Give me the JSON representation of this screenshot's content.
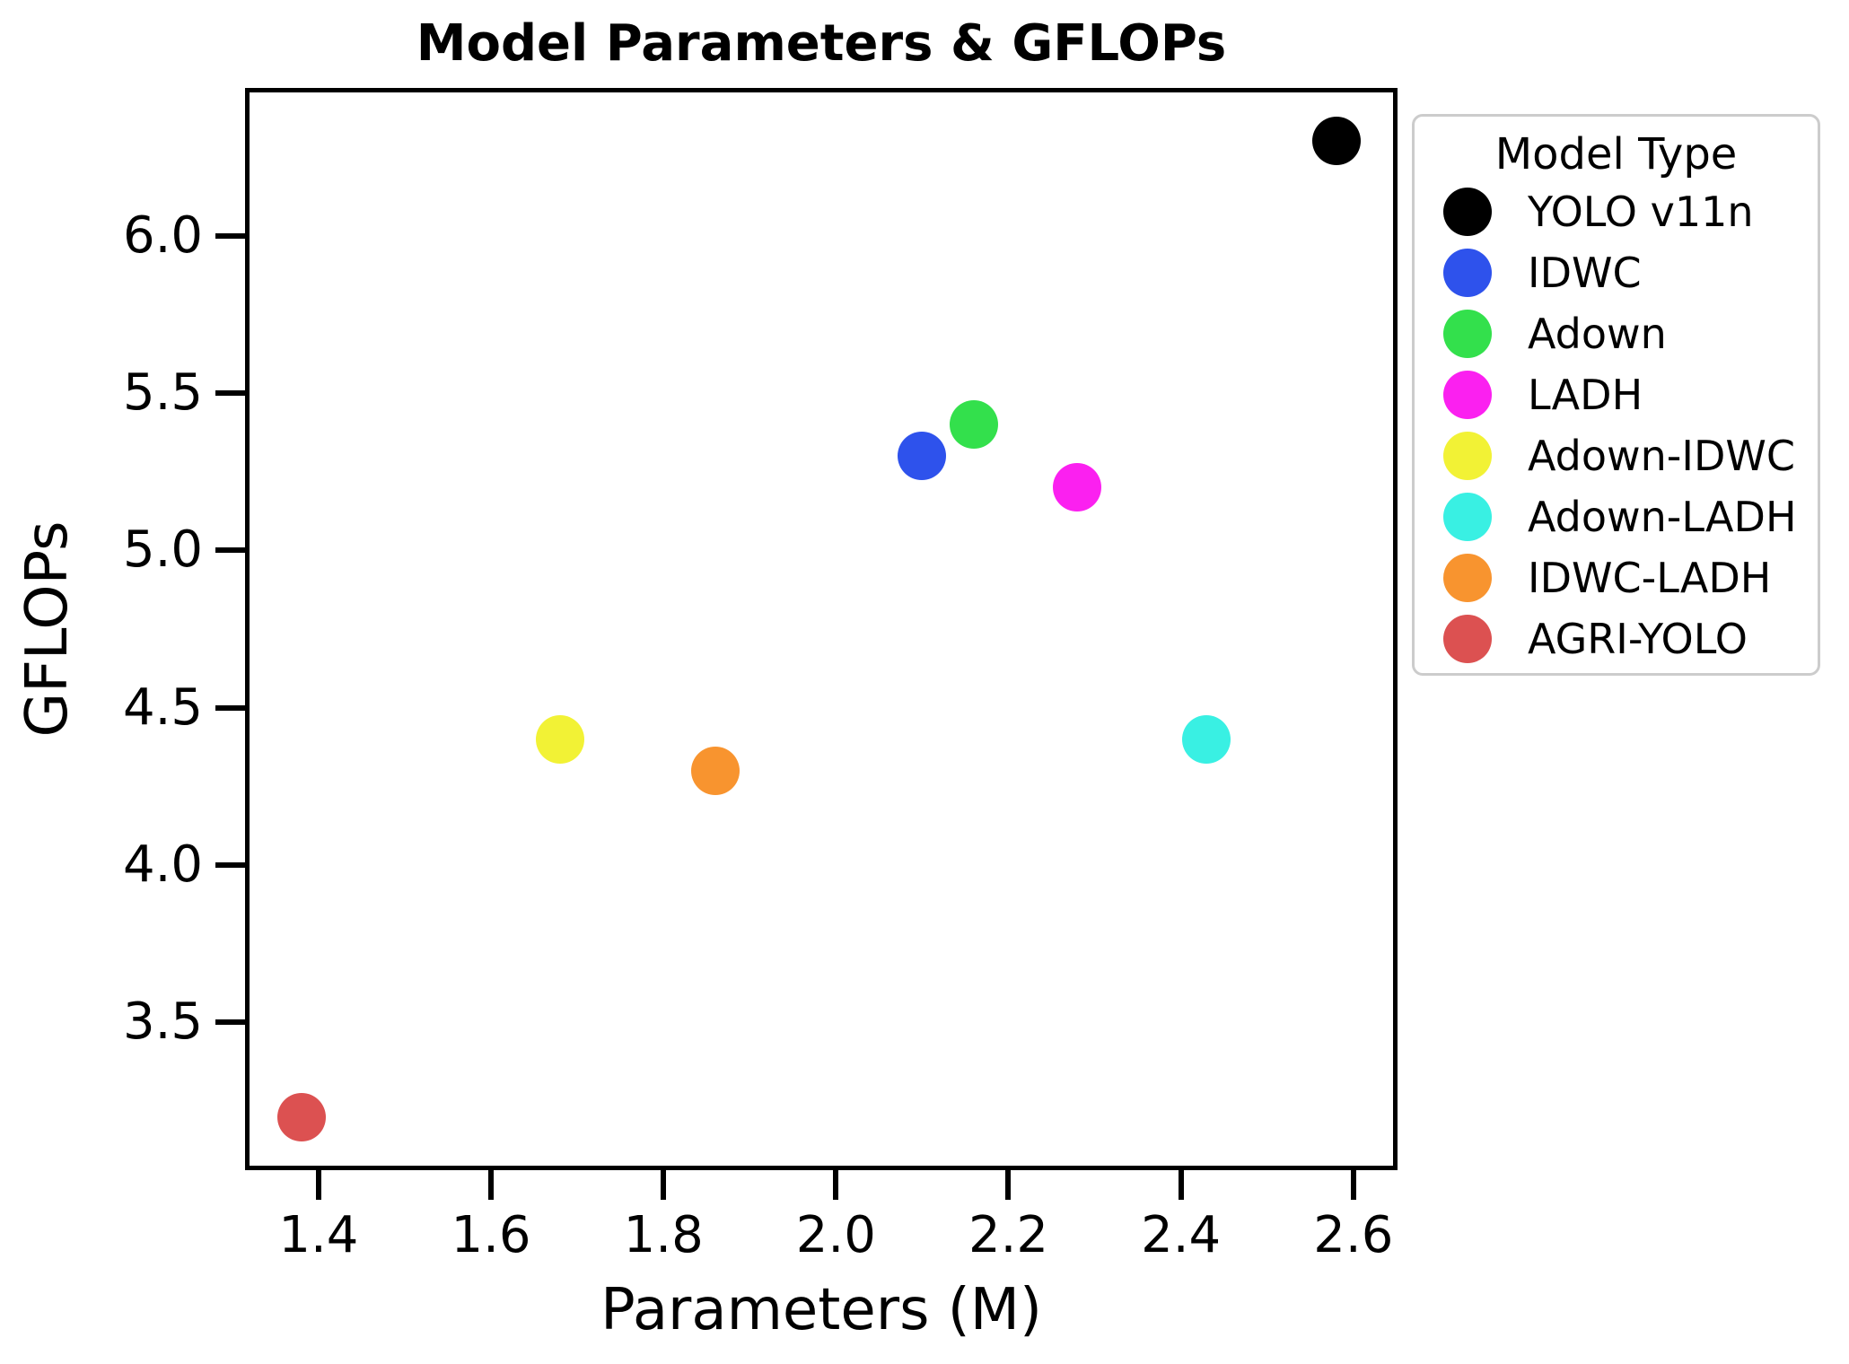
{
  "chart_data": {
    "type": "scatter",
    "title": "Model Parameters & GFLOPs",
    "xlabel": "Parameters (M)",
    "ylabel": "GFLOPs",
    "legend_title": "Model Type",
    "legend_position": "upper right, outside plot",
    "grid": false,
    "xlim": [
      1.32,
      2.646
    ],
    "ylim": [
      3.045,
      6.455
    ],
    "x_ticks": [
      1.4,
      1.6,
      1.8,
      2.0,
      2.2,
      2.4,
      2.6
    ],
    "y_ticks": [
      3.5,
      4.0,
      4.5,
      5.0,
      5.5,
      6.0
    ],
    "tick_decimals": 1,
    "series": [
      {
        "name": "YOLO v11n",
        "color": "#000000",
        "x": 2.58,
        "y": 6.3
      },
      {
        "name": "IDWC",
        "color": "#2e52ec",
        "x": 2.1,
        "y": 5.3
      },
      {
        "name": "Adown",
        "color": "#33e04c",
        "x": 2.16,
        "y": 5.4
      },
      {
        "name": "LADH",
        "color": "#fb20f0",
        "x": 2.28,
        "y": 5.2
      },
      {
        "name": "Adown-IDWC",
        "color": "#f2f235",
        "x": 1.68,
        "y": 4.4
      },
      {
        "name": "Adown-LADH",
        "color": "#39f0e3",
        "x": 2.43,
        "y": 4.4
      },
      {
        "name": "IDWC-LADH",
        "color": "#f8942f",
        "x": 1.86,
        "y": 4.3
      },
      {
        "name": "AGRI-YOLO",
        "color": "#dc5151",
        "x": 1.38,
        "y": 3.2
      }
    ]
  },
  "colors": {
    "background": "#ffffff",
    "spine": "#000000",
    "text": "#000000",
    "legend_border": "#cccccc"
  }
}
